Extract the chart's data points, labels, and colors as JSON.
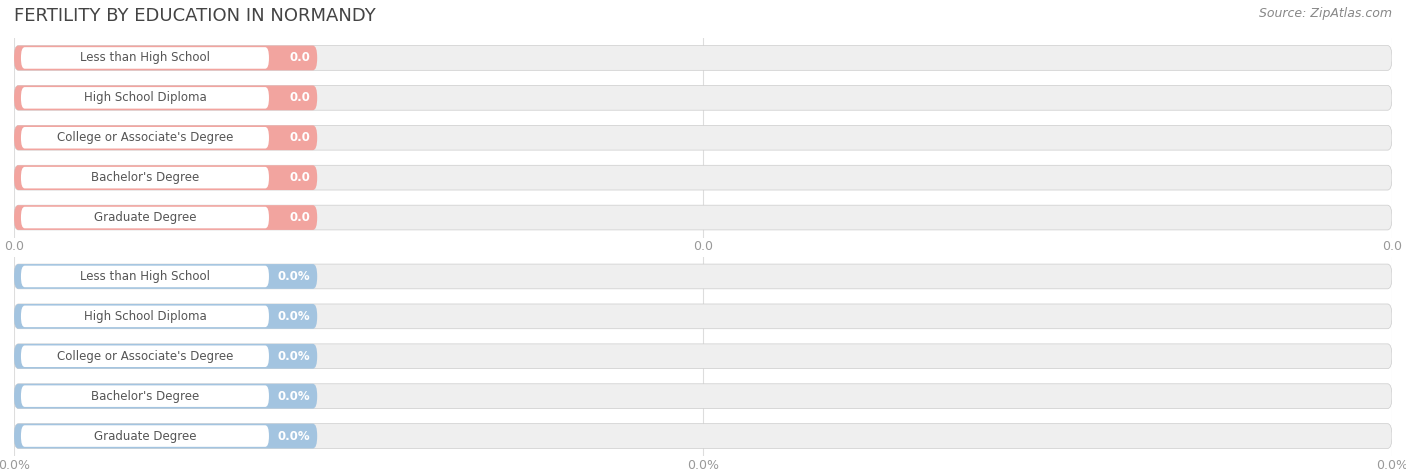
{
  "title": "FERTILITY BY EDUCATION IN NORMANDY",
  "source": "Source: ZipAtlas.com",
  "categories": [
    "Less than High School",
    "High School Diploma",
    "College or Associate's Degree",
    "Bachelor's Degree",
    "Graduate Degree"
  ],
  "top_values": [
    0.0,
    0.0,
    0.0,
    0.0,
    0.0
  ],
  "bottom_values": [
    0.0,
    0.0,
    0.0,
    0.0,
    0.0
  ],
  "top_bar_color": "#F2A49F",
  "top_bar_bg": "#EFEFEF",
  "bottom_bar_color": "#A3C4E0",
  "bottom_bar_bg": "#EFEFEF",
  "bar_height": 0.62,
  "bg_color": "#FFFFFF",
  "title_color": "#444444",
  "grid_color": "#DDDDDD",
  "label_box_color": "#FFFFFF",
  "label_text_color": "#555555",
  "value_text_color": "#FFFFFF",
  "tick_label_color": "#999999",
  "tick_label_fontsize": 9,
  "label_fontsize": 8.5,
  "title_fontsize": 13,
  "source_fontsize": 9
}
